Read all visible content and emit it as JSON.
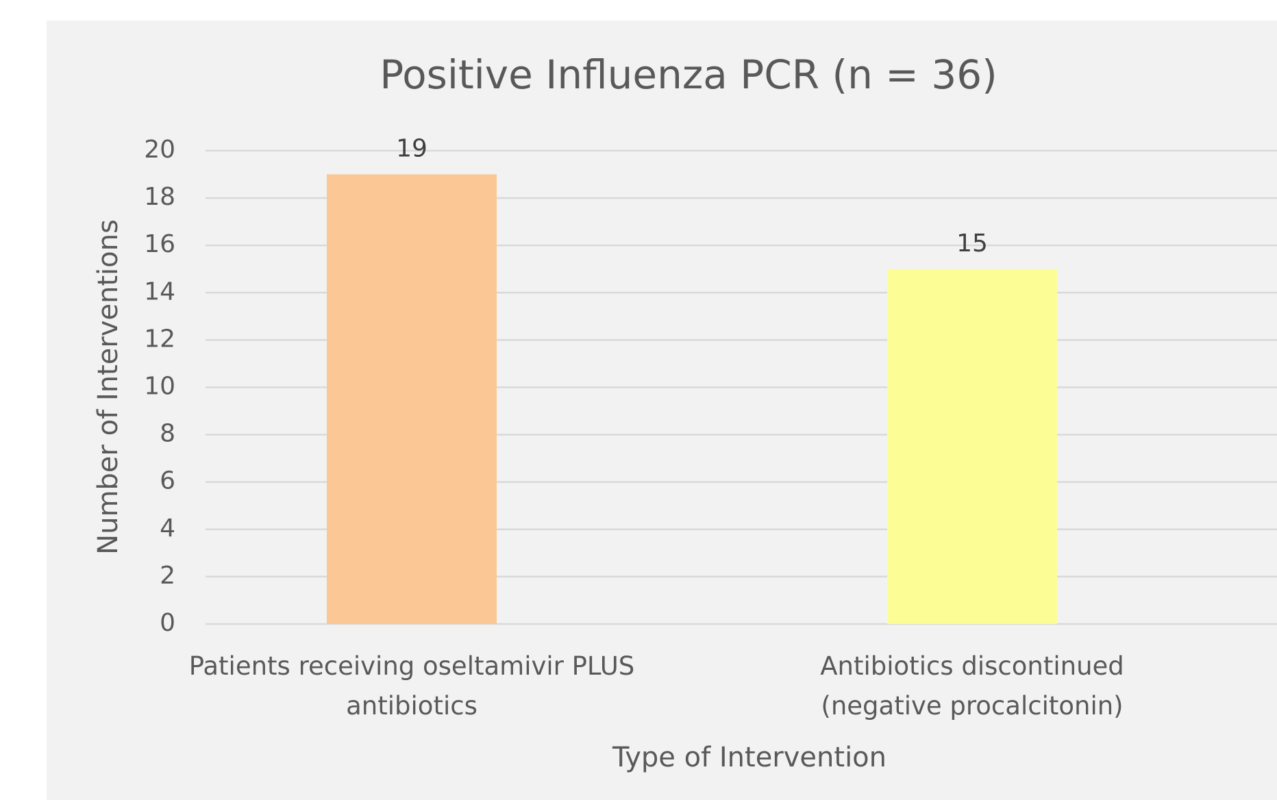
{
  "chart_data": {
    "type": "bar",
    "title": "Positive Influenza PCR (n = 36)",
    "x_label": "Type of Intervention",
    "y_label": "Number of Interventions",
    "categories": [
      "Patients receiving oseltamivir PLUS\nantibiotics",
      "Antibiotics discontinued\n(negative procalcitonin)"
    ],
    "values": [
      19,
      15
    ],
    "colors": [
      "#fbc895",
      "#fdfd96"
    ],
    "ylim": [
      0,
      20
    ],
    "yticks": [
      0,
      2,
      4,
      6,
      8,
      10,
      12,
      14,
      16,
      18,
      20
    ],
    "grid": true
  }
}
